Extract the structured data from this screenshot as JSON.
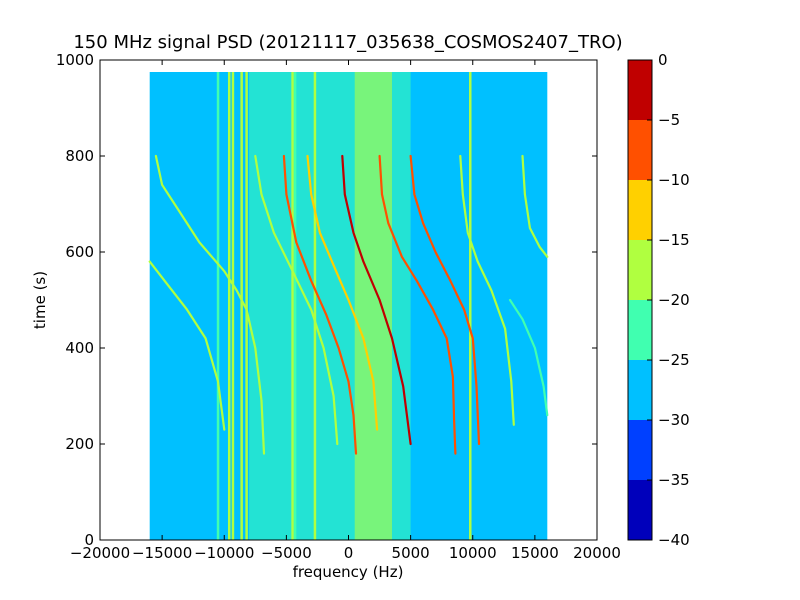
{
  "chart_data": {
    "type": "heatmap",
    "title": "150 MHz signal PSD (20121117_035638_COSMOS2407_TRO)",
    "xlabel": "frequency (Hz)",
    "ylabel": "time (s)",
    "xlim": [
      -20000,
      20000
    ],
    "ylim": [
      0,
      1000
    ],
    "x_ticks": [
      -20000,
      -15000,
      -10000,
      -5000,
      0,
      5000,
      10000,
      15000,
      20000
    ],
    "y_ticks": [
      0,
      200,
      400,
      600,
      800,
      1000
    ],
    "x_tick_labels": [
      "−20000",
      "−15000",
      "−10000",
      "−5000",
      "0",
      "5000",
      "10000",
      "15000",
      "20000"
    ],
    "y_tick_labels": [
      "0",
      "200",
      "400",
      "600",
      "800",
      "1000"
    ],
    "data_extent": {
      "x": [
        -16000,
        16000
      ],
      "y": [
        0,
        975
      ]
    },
    "background_level": -28,
    "colormap": "jet",
    "colorbar": {
      "levels": [
        -40,
        -35,
        -30,
        -25,
        -20,
        -15,
        -10,
        -5,
        0
      ],
      "tick_labels": [
        "−40",
        "−35",
        "−30",
        "−25",
        "−20",
        "−15",
        "−10",
        "−5",
        "0"
      ],
      "colors": [
        "#0000bb",
        "#0040ff",
        "#00c0ff",
        "#40ffb0",
        "#b0ff40",
        "#ffd000",
        "#ff5000",
        "#c00000"
      ]
    },
    "vertical_lines": [
      {
        "x": -10500,
        "level": -23
      },
      {
        "x": -9600,
        "level": -18
      },
      {
        "x": -9300,
        "level": -18
      },
      {
        "x": -8600,
        "level": -18
      },
      {
        "x": -8200,
        "level": -18
      },
      {
        "x": -4500,
        "level": -20
      },
      {
        "x": -4300,
        "level": -23
      },
      {
        "x": -2700,
        "level": -20
      },
      {
        "x": 9800,
        "level": -20
      }
    ],
    "traces": [
      {
        "name": "",
        "level": -20,
        "points": [
          [
            -16000,
            580
          ],
          [
            -14500,
            530
          ],
          [
            -13000,
            480
          ],
          [
            -11500,
            420
          ],
          [
            -10500,
            330
          ],
          [
            -10000,
            230
          ]
        ]
      },
      {
        "name": "",
        "level": -20,
        "points": [
          [
            -15500,
            800
          ],
          [
            -15000,
            740
          ],
          [
            -13500,
            680
          ],
          [
            -12000,
            620
          ],
          [
            -10000,
            560
          ],
          [
            -9000,
            520
          ],
          [
            -8200,
            480
          ],
          [
            -7500,
            400
          ],
          [
            -7000,
            290
          ],
          [
            -6800,
            180
          ]
        ]
      },
      {
        "name": "",
        "level": -20,
        "points": [
          [
            -7500,
            800
          ],
          [
            -7000,
            720
          ],
          [
            -6000,
            640
          ],
          [
            -4500,
            560
          ],
          [
            -3000,
            480
          ],
          [
            -2000,
            400
          ],
          [
            -1200,
            300
          ],
          [
            -900,
            200
          ]
        ]
      },
      {
        "name": "",
        "level": -8,
        "points": [
          [
            -5200,
            800
          ],
          [
            -5000,
            720
          ],
          [
            -4200,
            620
          ],
          [
            -3000,
            540
          ],
          [
            -1800,
            470
          ],
          [
            -800,
            400
          ],
          [
            0,
            330
          ],
          [
            400,
            260
          ],
          [
            600,
            180
          ]
        ]
      },
      {
        "name": "",
        "level": -12,
        "points": [
          [
            -3300,
            800
          ],
          [
            -3000,
            720
          ],
          [
            -2300,
            640
          ],
          [
            -1000,
            560
          ],
          [
            0,
            500
          ],
          [
            1200,
            420
          ],
          [
            2000,
            330
          ],
          [
            2300,
            230
          ]
        ]
      },
      {
        "name": "",
        "level": -3,
        "points": [
          [
            -500,
            800
          ],
          [
            -300,
            720
          ],
          [
            400,
            640
          ],
          [
            1200,
            580
          ],
          [
            2500,
            500
          ],
          [
            3500,
            420
          ],
          [
            4400,
            320
          ],
          [
            5000,
            200
          ]
        ]
      },
      {
        "name": "",
        "level": -10,
        "points": [
          [
            2500,
            800
          ],
          [
            2700,
            720
          ],
          [
            3200,
            660
          ],
          [
            4300,
            590
          ],
          [
            5500,
            540
          ],
          [
            6800,
            480
          ],
          [
            7900,
            420
          ],
          [
            8400,
            340
          ],
          [
            8500,
            250
          ],
          [
            8600,
            180
          ]
        ]
      },
      {
        "name": "",
        "level": -10,
        "points": [
          [
            5000,
            800
          ],
          [
            5300,
            720
          ],
          [
            6000,
            660
          ],
          [
            7000,
            600
          ],
          [
            8200,
            540
          ],
          [
            9300,
            480
          ],
          [
            10000,
            420
          ],
          [
            10300,
            320
          ],
          [
            10500,
            200
          ]
        ]
      },
      {
        "name": "",
        "level": -18,
        "points": [
          [
            9000,
            800
          ],
          [
            9200,
            720
          ],
          [
            9600,
            640
          ],
          [
            10400,
            580
          ],
          [
            11500,
            520
          ],
          [
            12600,
            440
          ],
          [
            13100,
            330
          ],
          [
            13300,
            240
          ]
        ]
      },
      {
        "name": "",
        "level": -20,
        "points": [
          [
            14000,
            800
          ],
          [
            14200,
            720
          ],
          [
            14600,
            650
          ],
          [
            15400,
            610
          ],
          [
            16000,
            590
          ]
        ]
      },
      {
        "name": "",
        "level": -22,
        "points": [
          [
            13000,
            500
          ],
          [
            14000,
            460
          ],
          [
            15000,
            400
          ],
          [
            15700,
            320
          ],
          [
            16000,
            260
          ]
        ]
      }
    ],
    "central_band": {
      "x_center": 2000,
      "x_width": 3000,
      "level": -17
    }
  }
}
